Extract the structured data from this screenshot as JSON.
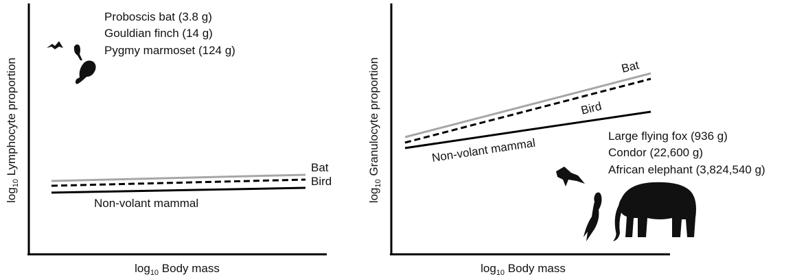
{
  "panels": [
    {
      "y_label": {
        "prefix": "log",
        "subscript": "10",
        "text": " Lymphocyte proportion"
      },
      "x_label": {
        "prefix": "log",
        "subscript": "10",
        "text": " Body mass"
      },
      "line_labels": {
        "bat": "Bat",
        "bird": "Bird",
        "mammal": "Non-volant mammal"
      },
      "species": [
        "Proboscis bat (3.8 g)",
        "Gouldian finch (14 g)",
        "Pygmy marmoset (124 g)"
      ]
    },
    {
      "y_label": {
        "prefix": "log",
        "subscript": "10",
        "text": " Granulocyte proportion"
      },
      "x_label": {
        "prefix": "log",
        "subscript": "10",
        "text": " Body mass"
      },
      "line_labels": {
        "bat": "Bat",
        "bird": "Bird",
        "mammal": "Non-volant mammal"
      },
      "species": [
        "Large flying fox (936 g)",
        "Condor (22,600 g)",
        "African elephant (3,824,540 g)"
      ]
    }
  ]
}
